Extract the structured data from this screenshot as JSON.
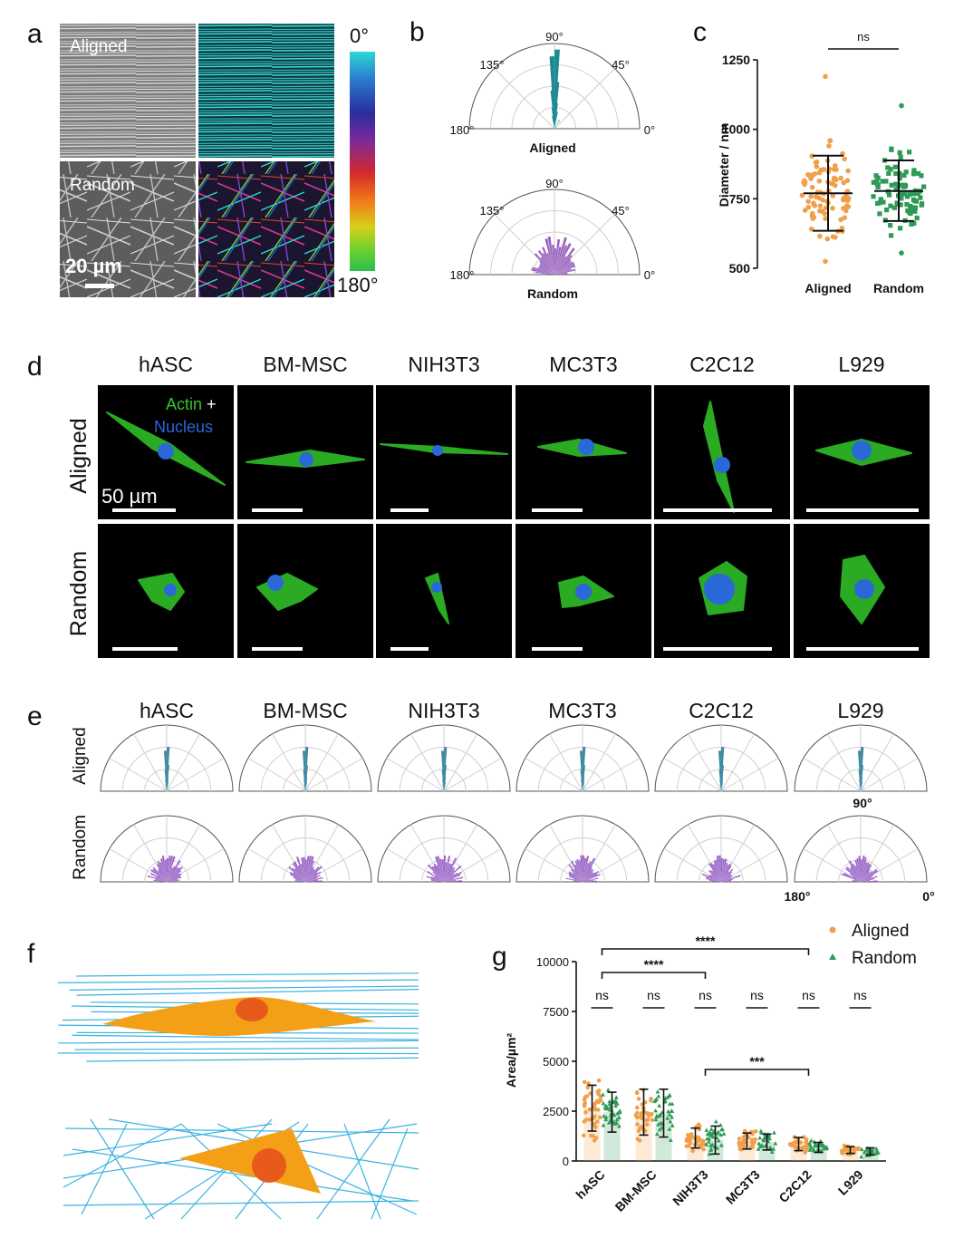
{
  "panel_labels": {
    "a": "a",
    "b": "b",
    "c": "c",
    "d": "d",
    "e": "e",
    "f": "f",
    "g": "g"
  },
  "panel_a": {
    "aligned_label": "Aligned",
    "random_label": "Random",
    "scalebar_label": "20 µm",
    "colorbar_top": "0°",
    "colorbar_bottom": "180°",
    "colorbar_colors": [
      "#2ad9d4",
      "#2a7fd0",
      "#2a2c9e",
      "#7a2a9e",
      "#d4282d",
      "#f07a18",
      "#d8d018",
      "#6fd030",
      "#29c04a"
    ]
  },
  "panel_b": {
    "angles": {
      "a90": "90°",
      "a135": "135°",
      "a45": "45°",
      "a180": "180°",
      "a0": "0°"
    },
    "aligned_label": "Aligned",
    "random_label": "Random",
    "aligned_color": "#1c8a93",
    "random_color": "#9a63c0"
  },
  "panel_d": {
    "cell_lines": [
      "hASC",
      "BM-MSC",
      "NIH3T3",
      "MC3T3",
      "C2C12",
      "L929"
    ],
    "rows": [
      "Aligned",
      "Random"
    ],
    "legend_actin": "Actin",
    "legend_plus": " +",
    "legend_nucleus": "Nucleus",
    "scalebar_label": "50 µm",
    "actin_color": "#33c82a",
    "nucleus_color": "#2a68d8"
  },
  "panel_e": {
    "cell_lines": [
      "hASC",
      "BM-MSC",
      "NIH3T3",
      "MC3T3",
      "C2C12",
      "L929"
    ],
    "rows": [
      "Aligned",
      "Random"
    ],
    "angle_90": "90°",
    "angle_180": "180°",
    "angle_0": "0°",
    "aligned_color": "#3d8aa2",
    "random_color": "#9a63c8"
  },
  "panel_f": {
    "fiber_color": "#39b3e0",
    "cell_color": "#f4a017",
    "nucleus_color": "#e85a1c"
  },
  "chart_data": [
    {
      "panel": "c",
      "type": "scatter",
      "ylabel": "Diameter / nm",
      "categories": [
        "Aligned",
        "Random"
      ],
      "yticks": [
        "500",
        "750",
        "1000",
        "1250"
      ],
      "ylim": [
        500,
        1250
      ],
      "series": [
        {
          "name": "Aligned",
          "mean": 770,
          "sd_low": 635,
          "sd_high": 905,
          "min": 525,
          "max": 1190,
          "color": "#f0a04a"
        },
        {
          "name": "Random",
          "mean": 778,
          "sd_low": 670,
          "sd_high": 888,
          "min": 555,
          "max": 1085,
          "color": "#2f9a58"
        }
      ],
      "significance": "ns"
    },
    {
      "panel": "g",
      "type": "bar",
      "ylabel": "Area/µm²",
      "categories": [
        "hASC",
        "BM-MSC",
        "NIH3T3",
        "MC3T3",
        "C2C12",
        "L929"
      ],
      "yticks": [
        "0",
        "2500",
        "5000",
        "7500",
        "10000"
      ],
      "ylim": [
        0,
        10000
      ],
      "series": [
        {
          "name": "Aligned",
          "values": [
            2650,
            2450,
            1150,
            1000,
            850,
            550
          ],
          "sd": [
            1150,
            1150,
            500,
            400,
            330,
            170
          ],
          "color": "#f0a04a"
        },
        {
          "name": "Random",
          "values": [
            2450,
            2400,
            1050,
            950,
            680,
            480
          ],
          "sd": [
            1000,
            1200,
            700,
            400,
            250,
            180
          ],
          "color": "#2f9a58"
        }
      ],
      "pair_labels": [
        "ns",
        "ns",
        "ns",
        "ns",
        "ns",
        "ns"
      ],
      "brackets": [
        {
          "from": "hASC",
          "to": "C2C12",
          "label": "****"
        },
        {
          "from": "hASC",
          "to": "NIH3T3",
          "label": "****"
        },
        {
          "from": "NIH3T3",
          "to": "C2C12",
          "label": "***"
        }
      ],
      "legend": {
        "aligned": "Aligned",
        "random": "Random"
      }
    }
  ]
}
